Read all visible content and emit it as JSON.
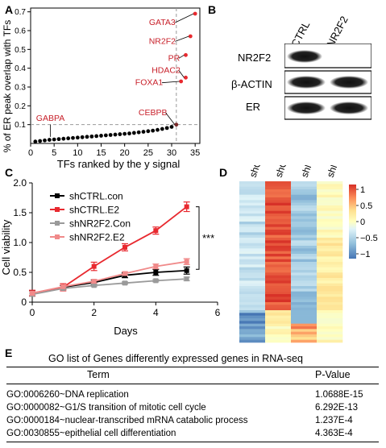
{
  "panels": {
    "a": "A",
    "b": "B",
    "c": "C",
    "d": "D",
    "e": "E"
  },
  "panel_a": {
    "chart_data": {
      "type": "scatter",
      "ylabel": "% of ER peak overlap with TFs",
      "xlabel": "TFs ranked by the y signal",
      "xticks": [
        0,
        5,
        10,
        15,
        20,
        25,
        30,
        35
      ],
      "yticks": [
        0.1,
        0.2,
        0.3,
        0.4,
        0.5,
        0.6,
        0.7
      ],
      "xlim": [
        0,
        36
      ],
      "ylim": [
        0,
        0.72
      ],
      "threshold_y": 0.1,
      "threshold_x": 31,
      "points": [
        [
          1,
          0.01
        ],
        [
          2,
          0.013
        ],
        [
          3,
          0.016
        ],
        [
          4,
          0.019
        ],
        [
          5,
          0.021
        ],
        [
          6,
          0.023
        ],
        [
          7,
          0.025
        ],
        [
          8,
          0.027
        ],
        [
          9,
          0.029
        ],
        [
          10,
          0.031
        ],
        [
          11,
          0.033
        ],
        [
          12,
          0.035
        ],
        [
          13,
          0.037
        ],
        [
          14,
          0.039
        ],
        [
          15,
          0.041
        ],
        [
          16,
          0.043
        ],
        [
          17,
          0.045
        ],
        [
          18,
          0.047
        ],
        [
          19,
          0.049
        ],
        [
          20,
          0.051
        ],
        [
          21,
          0.053
        ],
        [
          22,
          0.056
        ],
        [
          23,
          0.059
        ],
        [
          24,
          0.062
        ],
        [
          25,
          0.065
        ],
        [
          26,
          0.068
        ],
        [
          27,
          0.072
        ],
        [
          28,
          0.077
        ],
        [
          29,
          0.082
        ],
        [
          30,
          0.088
        ]
      ],
      "highlighted": [
        {
          "label": "CEBPB",
          "x": 31,
          "y": 0.1
        },
        {
          "label": "FOXA1",
          "x": 32,
          "y": 0.33
        },
        {
          "label": "HDAC2",
          "x": 33,
          "y": 0.35
        },
        {
          "label": "PR",
          "x": 33,
          "y": 0.47
        },
        {
          "label": "NR2F2",
          "x": 34,
          "y": 0.57
        },
        {
          "label": "GATA3",
          "x": 35,
          "y": 0.69
        }
      ],
      "annotation_gabpa": "GABPA"
    }
  },
  "panel_b": {
    "lanes": [
      "shCTRL",
      "shNR2F2"
    ],
    "rows": [
      "NR2F2",
      "β-ACTIN",
      "ER"
    ]
  },
  "panel_c": {
    "chart_data": {
      "type": "line",
      "xlabel": "Days",
      "ylabel": "Cell viability",
      "xticks": [
        0,
        2,
        4,
        6
      ],
      "yticks": [
        "0",
        "0.5",
        "1.0",
        "1.5",
        "2.0"
      ],
      "xlim": [
        0,
        6
      ],
      "ylim": [
        0,
        2.0
      ],
      "x": [
        0,
        1,
        2,
        3,
        4,
        5
      ],
      "series": [
        {
          "name": "shCTRL.con",
          "color": "#000000",
          "values": [
            0.15,
            0.25,
            0.33,
            0.45,
            0.5,
            0.53
          ],
          "err": [
            0.04,
            0.03,
            0.04,
            0.04,
            0.05,
            0.06
          ]
        },
        {
          "name": "shCTRL.E2",
          "color": "#e8292f",
          "values": [
            0.15,
            0.25,
            0.6,
            0.92,
            1.2,
            1.6
          ],
          "err": [
            0.05,
            0.06,
            0.07,
            0.06,
            0.06,
            0.08
          ]
        },
        {
          "name": "shNR2F2.Con",
          "color": "#9a9a9a",
          "values": [
            0.13,
            0.23,
            0.28,
            0.32,
            0.36,
            0.39
          ],
          "err": [
            0.02,
            0.02,
            0.02,
            0.02,
            0.02,
            0.03
          ]
        },
        {
          "name": "shNR2F2.E2",
          "color": "#f08a8a",
          "values": [
            0.15,
            0.26,
            0.35,
            0.48,
            0.6,
            0.68
          ],
          "err": [
            0.03,
            0.03,
            0.03,
            0.03,
            0.04,
            0.05
          ]
        }
      ],
      "significance": "***"
    }
  },
  "panel_d": {
    "chart_data": {
      "type": "heatmap",
      "columns": [
        "shCTR.nc",
        "shCTR.E2",
        "shNR2F2.con",
        "shNR2F2.E2"
      ],
      "colorbar_ticks": [
        "1",
        "0.5",
        "0",
        "−0.5",
        "−1"
      ],
      "colormap": [
        "#4575b4",
        "#91bfdb",
        "#e0f3f8",
        "#ffffbf",
        "#fee090",
        "#fc8d59",
        "#d73027"
      ]
    }
  },
  "panel_e": {
    "title": "GO list of Genes differently expressed  genes in RNA-seq",
    "header_term": "Term",
    "header_pvalue": "P-Value",
    "rows": [
      {
        "term": "GO:0006260~DNA replication",
        "pvalue": "1.0688E-15"
      },
      {
        "term": "GO:0000082~G1/S transition of mitotic cell cycle",
        "pvalue": "6.292E-13"
      },
      {
        "term": "GO:0000184~nuclear-transcribed mRNA catabolic process",
        "pvalue": "1.237E-4"
      },
      {
        "term": "GO:0030855~epithelial cell differentiation",
        "pvalue": "4.363E-4"
      }
    ]
  }
}
